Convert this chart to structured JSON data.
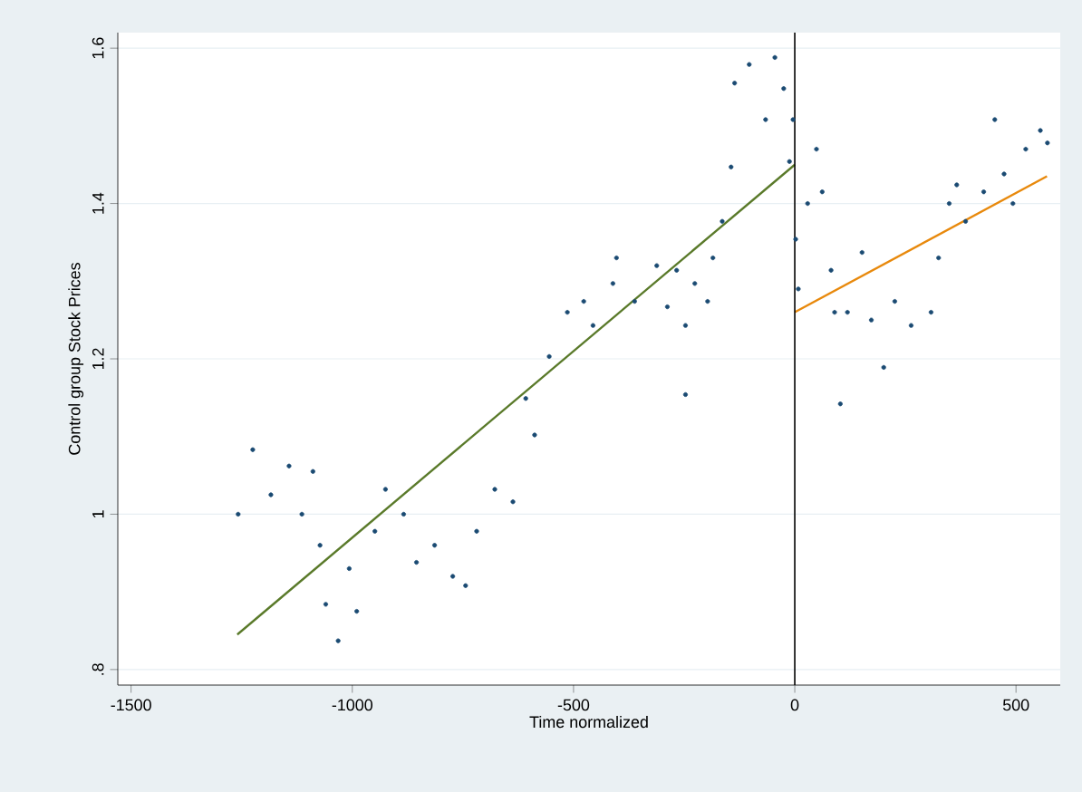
{
  "chart_data": {
    "type": "scatter",
    "xlabel": "Time normalized",
    "ylabel": "Control group Stock Prices",
    "xlim": [
      -1530,
      600
    ],
    "ylim": [
      0.78,
      1.62
    ],
    "xticks": [
      -1500,
      -1000,
      -500,
      0,
      500
    ],
    "yticks": [
      {
        "value": 0.8,
        "label": ".8"
      },
      1,
      1.2,
      1.4,
      1.6
    ],
    "grid": "y",
    "ref_lines": [
      {
        "axis": "x",
        "value": 0,
        "color": "#000000"
      }
    ],
    "series": [
      {
        "color": "#1a4a72",
        "x": [
          -1258,
          -1225,
          -1184,
          -1143,
          -1114,
          -1089,
          -1073,
          -1060,
          -1032,
          -1007,
          -990,
          -949,
          -925,
          -884,
          -855,
          -814,
          -773,
          -744,
          -719,
          -678,
          -637,
          -608,
          -588,
          -555,
          -514,
          -477,
          -456,
          -411,
          -403,
          -362,
          -312,
          -288,
          -267,
          -247,
          -247,
          -226,
          -197,
          -185,
          -164,
          -144,
          -136,
          -103,
          -66,
          -45,
          -25,
          -12,
          -4,
          2,
          8,
          29,
          49,
          62,
          82,
          90,
          103,
          119,
          152,
          173,
          201,
          226,
          263,
          308,
          325,
          349,
          366,
          386,
          427,
          452,
          473,
          493,
          522,
          555,
          571
        ],
        "values": [
          1.0,
          1.083,
          1.025,
          1.062,
          1.0,
          1.055,
          0.96,
          0.884,
          0.837,
          0.93,
          0.875,
          0.978,
          1.032,
          1.0,
          0.938,
          0.96,
          0.92,
          0.908,
          0.978,
          1.032,
          1.016,
          1.149,
          1.102,
          1.203,
          1.26,
          1.274,
          1.243,
          1.297,
          1.33,
          1.274,
          1.32,
          1.267,
          1.314,
          1.243,
          1.154,
          1.297,
          1.274,
          1.33,
          1.377,
          1.447,
          1.555,
          1.579,
          1.508,
          1.588,
          1.548,
          1.454,
          1.508,
          1.354,
          1.29,
          1.4,
          1.47,
          1.415,
          1.314,
          1.26,
          1.142,
          1.26,
          1.337,
          1.25,
          1.189,
          1.274,
          1.243,
          1.26,
          1.33,
          1.4,
          1.424,
          1.377,
          1.415,
          1.508,
          1.438,
          1.4,
          1.47,
          1.494,
          1.478
        ]
      },
      {
        "type": "line",
        "marker": "none",
        "color": "#5a7a2a",
        "x": [
          -1260,
          0
        ],
        "values": [
          0.845,
          1.45
        ]
      },
      {
        "type": "line",
        "marker": "none",
        "color": "#e8890c",
        "x": [
          0,
          570
        ],
        "values": [
          1.26,
          1.435
        ]
      }
    ]
  }
}
